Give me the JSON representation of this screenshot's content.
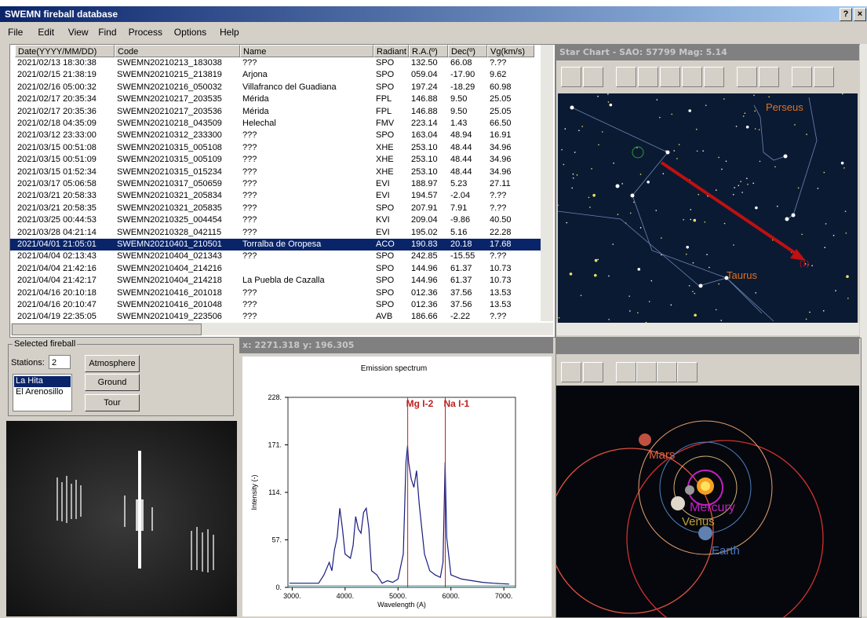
{
  "window": {
    "title": "SWEMN fireball database",
    "help_button": "?",
    "close_button": "×"
  },
  "menu": [
    "File",
    "Edit",
    "View",
    "Find",
    "Process",
    "Options",
    "Help"
  ],
  "table": {
    "columns": [
      "Date(YYYY/MM/DD)",
      "Code",
      "Name",
      "Radiant",
      "R.A.(º)",
      "Dec(º)",
      "Vg(km/s)"
    ],
    "selected_row": 15,
    "rows": [
      [
        "2021/02/13 18:30:38",
        "SWEMN20210213_183038",
        "???",
        "SPO",
        "132.50",
        "66.08",
        "?.??"
      ],
      [
        "2021/02/15 21:38:19",
        "SWEMN20210215_213819",
        "Arjona",
        "SPO",
        "059.04",
        "-17.90",
        "9.62"
      ],
      [
        "2021/02/16 05:00:32",
        "SWEMN20210216_050032",
        "Villafranco del Guadiana",
        "SPO",
        "197.24",
        "-18.29",
        "60.98"
      ],
      [
        "2021/02/17 20:35:34",
        "SWEMN20210217_203535",
        "Mérida",
        "FPL",
        "146.88",
        "9.50",
        "25.05"
      ],
      [
        "2021/02/17 20:35:36",
        "SWEMN20210217_203536",
        "Mérida",
        "FPL",
        "146.88",
        "9.50",
        "25.05"
      ],
      [
        "2021/02/18 04:35:09",
        "SWEMN20210218_043509",
        "Helechal",
        "FMV",
        "223.14",
        "1.43",
        "66.50"
      ],
      [
        "2021/03/12 23:33:00",
        "SWEMN20210312_233300",
        "???",
        "SPO",
        "163.04",
        "48.94",
        "16.91"
      ],
      [
        "2021/03/15 00:51:08",
        "SWEMN20210315_005108",
        "???",
        "XHE",
        "253.10",
        "48.44",
        "34.96"
      ],
      [
        "2021/03/15 00:51:09",
        "SWEMN20210315_005109",
        "???",
        "XHE",
        "253.10",
        "48.44",
        "34.96"
      ],
      [
        "2021/03/15 01:52:34",
        "SWEMN20210315_015234",
        "???",
        "XHE",
        "253.10",
        "48.44",
        "34.96"
      ],
      [
        "2021/03/17 05:06:58",
        "SWEMN20210317_050659",
        "???",
        "EVI",
        "188.97",
        "5.23",
        "27.11"
      ],
      [
        "2021/03/21 20:58:33",
        "SWEMN20210321_205834",
        "???",
        "EVI",
        "194.57",
        "-2.04",
        "?.??"
      ],
      [
        "2021/03/21 20:58:35",
        "SWEMN20210321_205835",
        "???",
        "SPO",
        "207.91",
        "7.91",
        "?.??"
      ],
      [
        "2021/03/25 00:44:53",
        "SWEMN20210325_004454",
        "???",
        "KVI",
        "209.04",
        "-9.86",
        "40.50"
      ],
      [
        "2021/03/28 04:21:14",
        "SWEMN20210328_042115",
        "???",
        "EVI",
        "195.02",
        "5.16",
        "22.28"
      ],
      [
        "2021/04/01 21:05:01",
        "SWEMN20210401_210501",
        "Torralba de Oropesa",
        "ACO",
        "190.83",
        "20.18",
        "17.68"
      ],
      [
        "2021/04/04 02:13:43",
        "SWEMN20210404_021343",
        "???",
        "SPO",
        "242.85",
        "-15.55",
        "?.??"
      ],
      [
        "2021/04/04 21:42:16",
        "SWEMN20210404_214216",
        null,
        "SPO",
        "144.96",
        "61.37",
        "10.73"
      ],
      [
        "2021/04/04 21:42:17",
        "SWEMN20210404_214218",
        "La Puebla de Cazalla",
        "SPO",
        "144.96",
        "61.37",
        "10.73"
      ],
      [
        "2021/04/16 20:10:18",
        "SWEMN20210416_201018",
        "???",
        "SPO",
        "012.36",
        "37.56",
        "13.53"
      ],
      [
        "2021/04/16 20:10:47",
        "SWEMN20210416_201048",
        "???",
        "SPO",
        "012.36",
        "37.56",
        "13.53"
      ],
      [
        "2021/04/19 22:35:05",
        "SWEMN20210419_223506",
        "???",
        "AVB",
        "186.66",
        "-2.22",
        "?.??"
      ]
    ]
  },
  "star_chart": {
    "title": "Star Chart   -   SAO: 57799  Mag: 5.14",
    "labels": [
      "Perseus",
      "Taurus",
      "(1)"
    ]
  },
  "selected_fireball": {
    "group": "Selected fireball",
    "stations_label": "Stations:",
    "stations_count": "2",
    "buttons": [
      "Atmosphere",
      "Ground",
      "Tour"
    ],
    "stations": [
      "La Hita",
      "El Arenosillo"
    ]
  },
  "spectrum": {
    "cursor": "x: 2271.318   y: 196.305",
    "title": "Emission spectrum",
    "xlabel": "Wavelength (A)",
    "ylabel": "Intensity (-)",
    "xlim": [
      2920,
      7220
    ],
    "ylim": [
      0,
      228
    ],
    "xticks": [
      {
        "value": 3000,
        "label": "3000."
      },
      {
        "value": 4000,
        "label": "4000."
      },
      {
        "value": 5000,
        "label": "5000."
      },
      {
        "value": 6000,
        "label": "6000."
      },
      {
        "value": 7000,
        "label": "7000."
      }
    ],
    "yticks": [
      {
        "value": 0,
        "label": "0."
      },
      {
        "value": 57,
        "label": "57."
      },
      {
        "value": 114,
        "label": "114."
      },
      {
        "value": 171,
        "label": "171."
      },
      {
        "value": 228,
        "label": "228."
      }
    ],
    "x": [
      2950,
      3500,
      3600,
      3700,
      3750,
      3800,
      3850,
      3900,
      3950,
      4000,
      4100,
      4150,
      4200,
      4250,
      4300,
      4350,
      4400,
      4450,
      4500,
      4600,
      4700,
      4800,
      4900,
      5000,
      5100,
      5150,
      5180,
      5200,
      5250,
      5300,
      5350,
      5400,
      5500,
      5600,
      5700,
      5800,
      5850,
      5890,
      5920,
      6000,
      6200,
      6400,
      6600,
      6800,
      7100
    ],
    "values": [
      5,
      5,
      15,
      30,
      20,
      45,
      60,
      95,
      70,
      40,
      35,
      50,
      85,
      70,
      65,
      90,
      95,
      70,
      20,
      15,
      5,
      8,
      6,
      10,
      40,
      150,
      170,
      150,
      130,
      120,
      140,
      100,
      40,
      20,
      15,
      12,
      30,
      150,
      60,
      15,
      10,
      8,
      6,
      5,
      4
    ],
    "color": "#1a1a80",
    "lines": [
      {
        "label": "Mg I-2",
        "value": 5183
      },
      {
        "label": "Na I-1",
        "value": 5893
      }
    ]
  },
  "solar_system": {
    "labels": [
      "Mars",
      "Mercury",
      "Venus",
      "Earth"
    ]
  }
}
